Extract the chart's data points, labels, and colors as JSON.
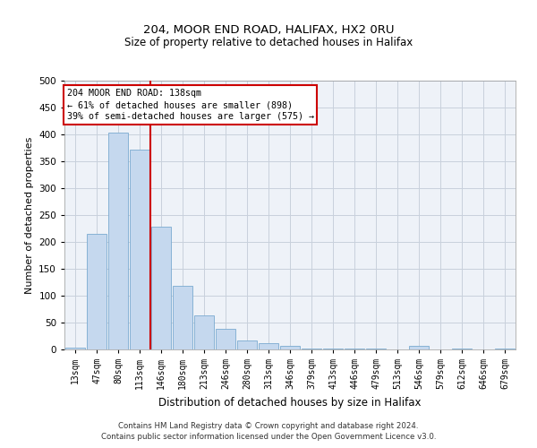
{
  "title_line1": "204, MOOR END ROAD, HALIFAX, HX2 0RU",
  "title_line2": "Size of property relative to detached houses in Halifax",
  "xlabel": "Distribution of detached houses by size in Halifax",
  "ylabel": "Number of detached properties",
  "categories": [
    "13sqm",
    "47sqm",
    "80sqm",
    "113sqm",
    "146sqm",
    "180sqm",
    "213sqm",
    "246sqm",
    "280sqm",
    "313sqm",
    "346sqm",
    "379sqm",
    "413sqm",
    "446sqm",
    "479sqm",
    "513sqm",
    "546sqm",
    "579sqm",
    "612sqm",
    "646sqm",
    "679sqm"
  ],
  "values": [
    3,
    215,
    404,
    371,
    228,
    118,
    64,
    38,
    17,
    11,
    6,
    2,
    2,
    2,
    2,
    0,
    6,
    0,
    2,
    0,
    1
  ],
  "bar_color": "#c5d8ee",
  "bar_edge_color": "#7aaad0",
  "annotation_text_line1": "204 MOOR END ROAD: 138sqm",
  "annotation_text_line2": "← 61% of detached houses are smaller (898)",
  "annotation_text_line3": "39% of semi-detached houses are larger (575) →",
  "annotation_box_color": "#ffffff",
  "annotation_border_color": "#cc0000",
  "vline_color": "#cc0000",
  "vline_x": 3.5,
  "ylim": [
    0,
    500
  ],
  "yticks": [
    0,
    50,
    100,
    150,
    200,
    250,
    300,
    350,
    400,
    450,
    500
  ],
  "grid_color": "#c8d0dc",
  "background_color": "#eef2f8",
  "footer_line1": "Contains HM Land Registry data © Crown copyright and database right 2024.",
  "footer_line2": "Contains public sector information licensed under the Open Government Licence v3.0."
}
